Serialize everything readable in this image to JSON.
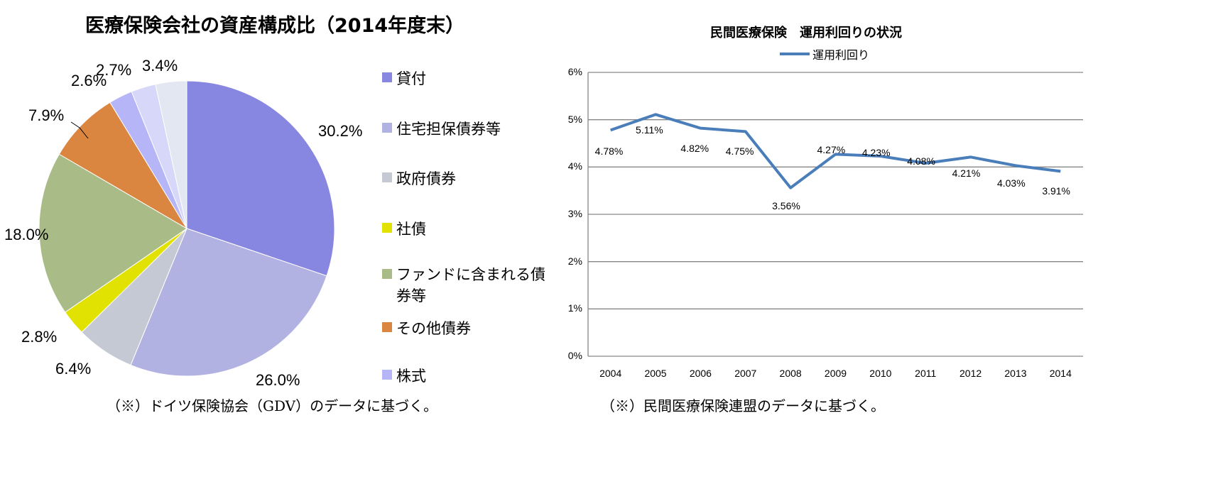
{
  "chart_data": [
    {
      "type": "pie",
      "title": "医療保険会社の資産構成比（2014年度末）",
      "categories": [
        "貸付",
        "住宅担保債券等",
        "政府債券",
        "社債",
        "ファンドに含まれる債券等",
        "その他債券",
        "株式",
        "",
        ""
      ],
      "values": [
        30.2,
        26.0,
        6.4,
        2.8,
        18.0,
        7.9,
        2.6,
        2.7,
        3.4
      ],
      "data_labels": [
        "30.2%",
        "26.0%",
        "6.4%",
        "2.8%",
        "18.0%",
        "7.9%",
        "2.6%",
        "2.7%",
        "3.4%"
      ],
      "legend_labels": [
        "貸付",
        "住宅担保債券等",
        "政府債券",
        "社債",
        "ファンドに含まれる債券等",
        "その他債券",
        "株式"
      ],
      "colors": [
        "#8787e1",
        "#b2b2e2",
        "#c4c9d4",
        "#e1e102",
        "#a9bb87",
        "#da8641",
        "#b5b5f7",
        "#d7d7f9",
        "#e2e7f1"
      ],
      "legend": "right",
      "note": "（※）ドイツ保険協会（GDV）のデータに基づく。"
    },
    {
      "type": "line",
      "title": "民間医療保険　運用利回りの状況",
      "x": [
        "2004",
        "2005",
        "2006",
        "2007",
        "2008",
        "2009",
        "2010",
        "2011",
        "2012",
        "2013",
        "2014"
      ],
      "series": [
        {
          "name": "運用利回り",
          "values": [
            4.78,
            5.11,
            4.82,
            4.75,
            3.56,
            4.27,
            4.23,
            4.08,
            4.21,
            4.03,
            3.91
          ],
          "color": "#4a7ebb"
        }
      ],
      "data_labels": [
        "4.78%",
        "5.11%",
        "4.82%",
        "4.75%",
        "3.56%",
        "4.27%",
        "4.23%",
        "4.08%",
        "4.21%",
        "4.03%",
        "3.91%"
      ],
      "y_ticks": [
        "0%",
        "1%",
        "2%",
        "3%",
        "4%",
        "5%",
        "6%"
      ],
      "ylim": [
        0,
        6
      ],
      "grid": true,
      "legend": "top",
      "note": "（※）民間医療保険連盟のデータに基づく。"
    }
  ]
}
